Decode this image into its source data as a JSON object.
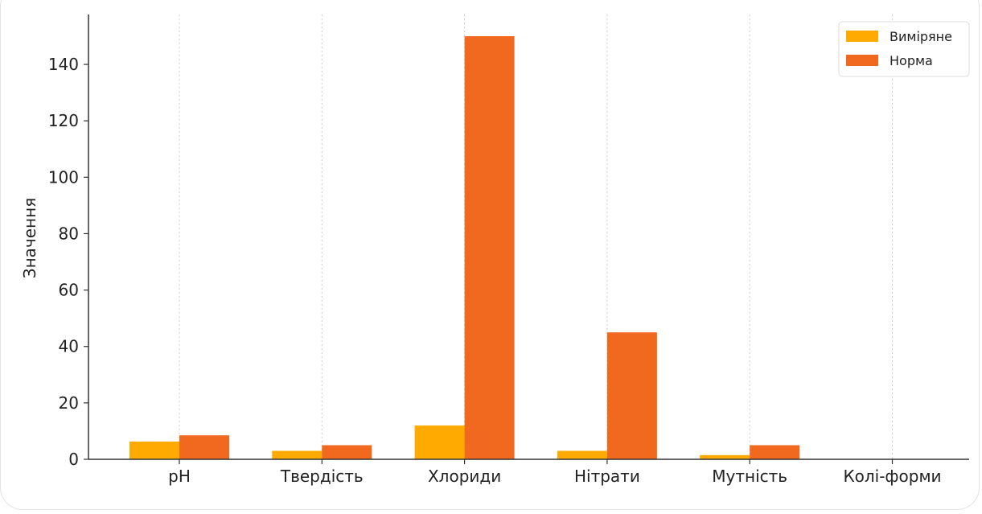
{
  "chart_data": {
    "type": "bar",
    "categories": [
      "pH",
      "Твердість",
      "Хлориди",
      "Нітрати",
      "Мутність",
      "Колі-форми"
    ],
    "series": [
      {
        "name": "Виміряне",
        "values": [
          6.3,
          3.0,
          12.0,
          3.0,
          1.5,
          0
        ],
        "color": "#FFAA00"
      },
      {
        "name": "Норма",
        "values": [
          8.5,
          5.0,
          150,
          45,
          5.0,
          0
        ],
        "color": "#F0691F"
      }
    ],
    "xlabel": "",
    "ylabel": "Значення",
    "ylim": [
      0,
      155
    ],
    "yticks": [
      0,
      20,
      40,
      60,
      80,
      100,
      120,
      140
    ],
    "grid": "vertical dotted",
    "legend_position": "top-right"
  }
}
